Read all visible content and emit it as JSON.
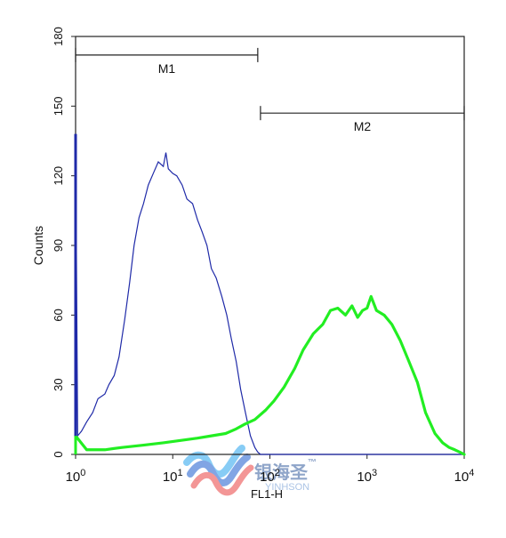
{
  "chart_data": {
    "type": "line",
    "title": "",
    "xlabel": "FL1-H",
    "ylabel": "Counts",
    "xscale": "log",
    "xlim": [
      1,
      10000
    ],
    "ylim": [
      0,
      180
    ],
    "grid": false,
    "x_tick_labels": [
      {
        "base": "10",
        "exp": "0",
        "value": 1
      },
      {
        "base": "10",
        "exp": "1",
        "value": 10
      },
      {
        "base": "10",
        "exp": "2",
        "value": 100
      },
      {
        "base": "10",
        "exp": "3",
        "value": 1000
      },
      {
        "base": "10",
        "exp": "4",
        "value": 10000
      }
    ],
    "y_ticks": [
      0,
      30,
      60,
      90,
      120,
      150,
      180
    ],
    "markers": [
      {
        "label": "M1",
        "x_start": 1,
        "x_end": 75,
        "y": 172
      },
      {
        "label": "M2",
        "x_start": 80,
        "x_end": 10000,
        "y": 147
      }
    ],
    "series": [
      {
        "color": "#1f2aa8",
        "x": [
          1,
          1.05,
          1.15,
          1.3,
          1.5,
          1.7,
          2.0,
          2.2,
          2.5,
          2.8,
          3.2,
          3.6,
          4.0,
          4.5,
          5.0,
          5.6,
          6.3,
          7.1,
          8.0,
          8.5,
          9.0,
          10.0,
          11.0,
          12.5,
          14.0,
          16.0,
          18.0,
          20.0,
          22.5,
          25.0,
          28.0,
          32.0,
          36.0,
          40.0,
          45.0,
          50.0,
          56.0,
          63.0,
          70.0,
          75.0,
          80.0,
          90.0,
          100.0,
          200.0,
          1000.0,
          10000.0
        ],
        "y": [
          138,
          8,
          10,
          14,
          18,
          24,
          26,
          30,
          34,
          42,
          58,
          74,
          90,
          102,
          108,
          116,
          121,
          126,
          124,
          130,
          123,
          121,
          120,
          116,
          110,
          108,
          101,
          96,
          90,
          80,
          76,
          68,
          60,
          50,
          40,
          28,
          18,
          8,
          3,
          1,
          0,
          0,
          0,
          0,
          0,
          0
        ]
      },
      {
        "color": "#22ee22",
        "x": [
          1,
          1.3,
          2.0,
          3.0,
          5.0,
          8.0,
          12.0,
          18.0,
          25.0,
          35.0,
          45.0,
          55.0,
          70.0,
          90.0,
          110.0,
          140.0,
          180.0,
          220.0,
          280.0,
          350.0,
          420.0,
          500.0,
          600.0,
          700.0,
          800.0,
          900.0,
          1000.0,
          1100.0,
          1250.0,
          1500.0,
          1800.0,
          2200.0,
          2700.0,
          3300.0,
          4000.0,
          5000.0,
          6000.0,
          7000.0,
          8000.0,
          9000.0,
          10000.0
        ],
        "y": [
          8,
          2,
          2,
          3,
          4,
          5,
          6,
          7,
          8,
          9,
          11,
          13,
          15,
          19,
          23,
          29,
          37,
          45,
          52,
          56,
          62,
          63,
          60,
          64,
          59,
          62,
          63,
          68,
          62,
          60,
          56,
          49,
          40,
          31,
          18,
          9,
          5,
          3,
          2,
          1,
          0
        ]
      }
    ]
  },
  "watermark": {
    "name_cn": "银海圣",
    "trademark": "™",
    "name_en": "YINHSON"
  }
}
